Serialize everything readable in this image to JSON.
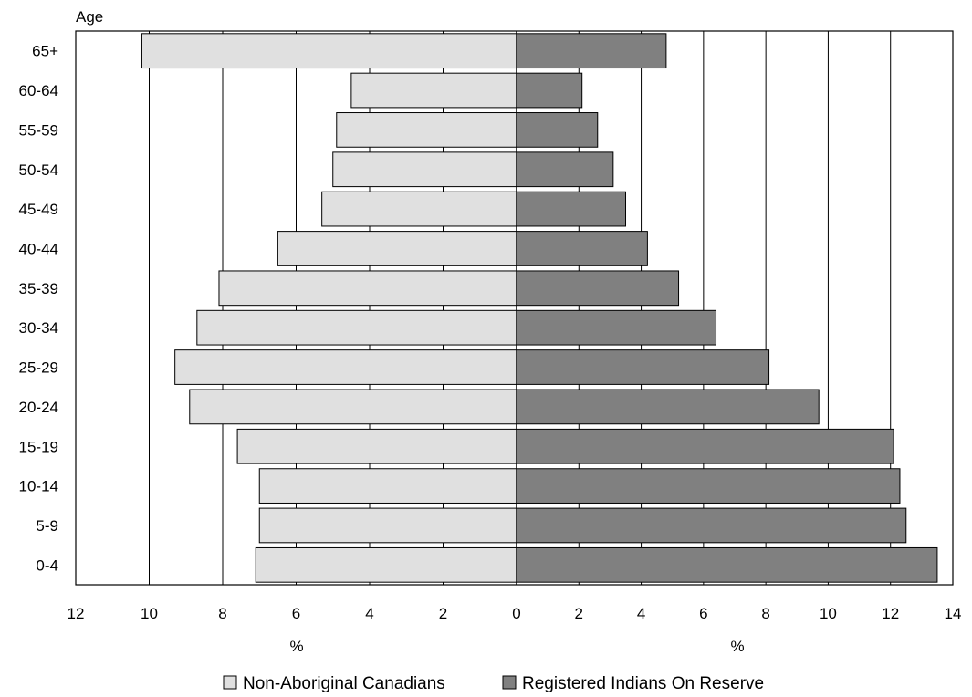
{
  "chart_data": {
    "type": "bar",
    "orientation": "horizontal-pyramid",
    "y_axis_title": "Age",
    "categories": [
      "65+",
      "60-64",
      "55-59",
      "50-54",
      "45-49",
      "40-44",
      "35-39",
      "30-34",
      "25-29",
      "20-24",
      "15-19",
      "10-14",
      "5-9",
      "0-4"
    ],
    "left_axis": {
      "label": "%",
      "ticks": [
        "12",
        "10",
        "8",
        "6",
        "4",
        "2",
        "0"
      ],
      "range": [
        0,
        12
      ],
      "direction": "reversed"
    },
    "right_axis": {
      "label": "%",
      "ticks": [
        "0",
        "2",
        "4",
        "6",
        "8",
        "10",
        "12",
        "14"
      ],
      "range": [
        0,
        14
      ]
    },
    "series": [
      {
        "name": "Non-Aboriginal Canadians",
        "side": "left",
        "color": "#e0e0e0",
        "values": [
          10.2,
          4.5,
          4.9,
          5.0,
          5.3,
          6.5,
          8.1,
          8.7,
          9.3,
          8.9,
          7.6,
          7.0,
          7.0,
          7.1
        ]
      },
      {
        "name": "Registered Indians On Reserve",
        "side": "right",
        "color": "#808080",
        "values": [
          4.8,
          2.1,
          2.6,
          3.1,
          3.5,
          4.2,
          5.2,
          6.4,
          8.1,
          9.7,
          12.1,
          12.3,
          12.5,
          13.5
        ]
      }
    ],
    "grid": "vertical",
    "legend_position": "bottom-center"
  }
}
